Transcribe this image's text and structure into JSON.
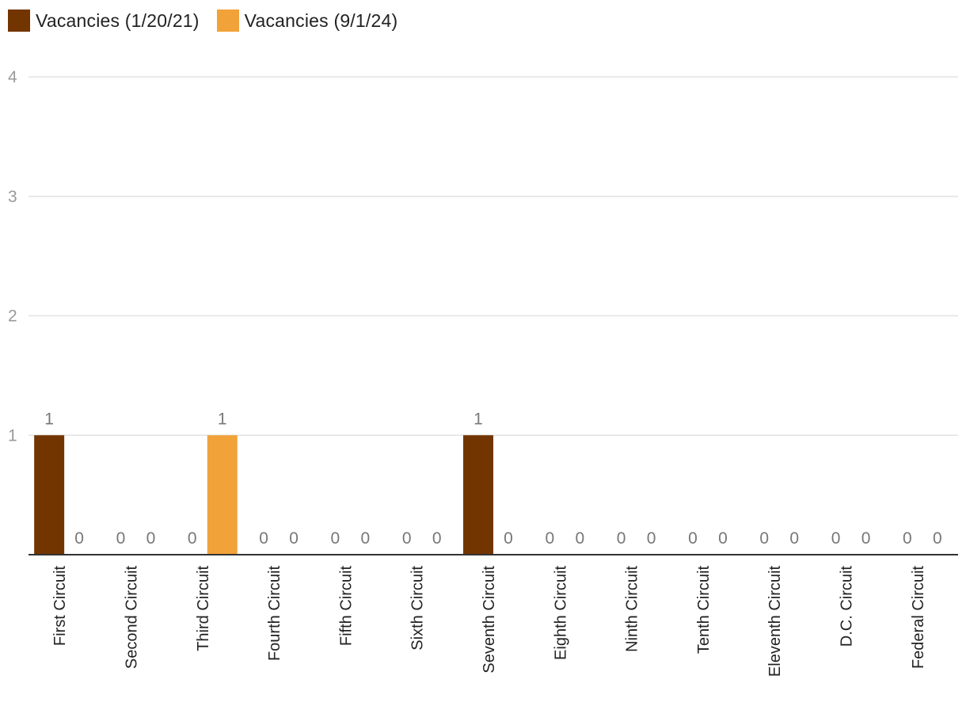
{
  "chart_data": {
    "type": "bar",
    "categories": [
      "First Circuit",
      "Second Circuit",
      "Third Circuit",
      "Fourth Circuit",
      "Fifth Circuit",
      "Sixth Circuit",
      "Seventh Circuit",
      "Eighth Circuit",
      "Ninth Circuit",
      "Tenth Circuit",
      "Eleventh Circuit",
      "D.C. Circuit",
      "Federal Circuit"
    ],
    "series": [
      {
        "name": "Vacancies (1/20/21)",
        "color": "#733500",
        "values": [
          1,
          0,
          0,
          0,
          0,
          0,
          1,
          0,
          0,
          0,
          0,
          0,
          0
        ]
      },
      {
        "name": "Vacancies (9/1/24)",
        "color": "#f1a239",
        "values": [
          0,
          0,
          1,
          0,
          0,
          0,
          0,
          0,
          0,
          0,
          0,
          0,
          0
        ]
      }
    ],
    "ylim": [
      0,
      4
    ],
    "yticks": [
      1,
      2,
      3,
      4
    ],
    "grid": true,
    "legend_position": "top-left",
    "data_labels": true
  }
}
